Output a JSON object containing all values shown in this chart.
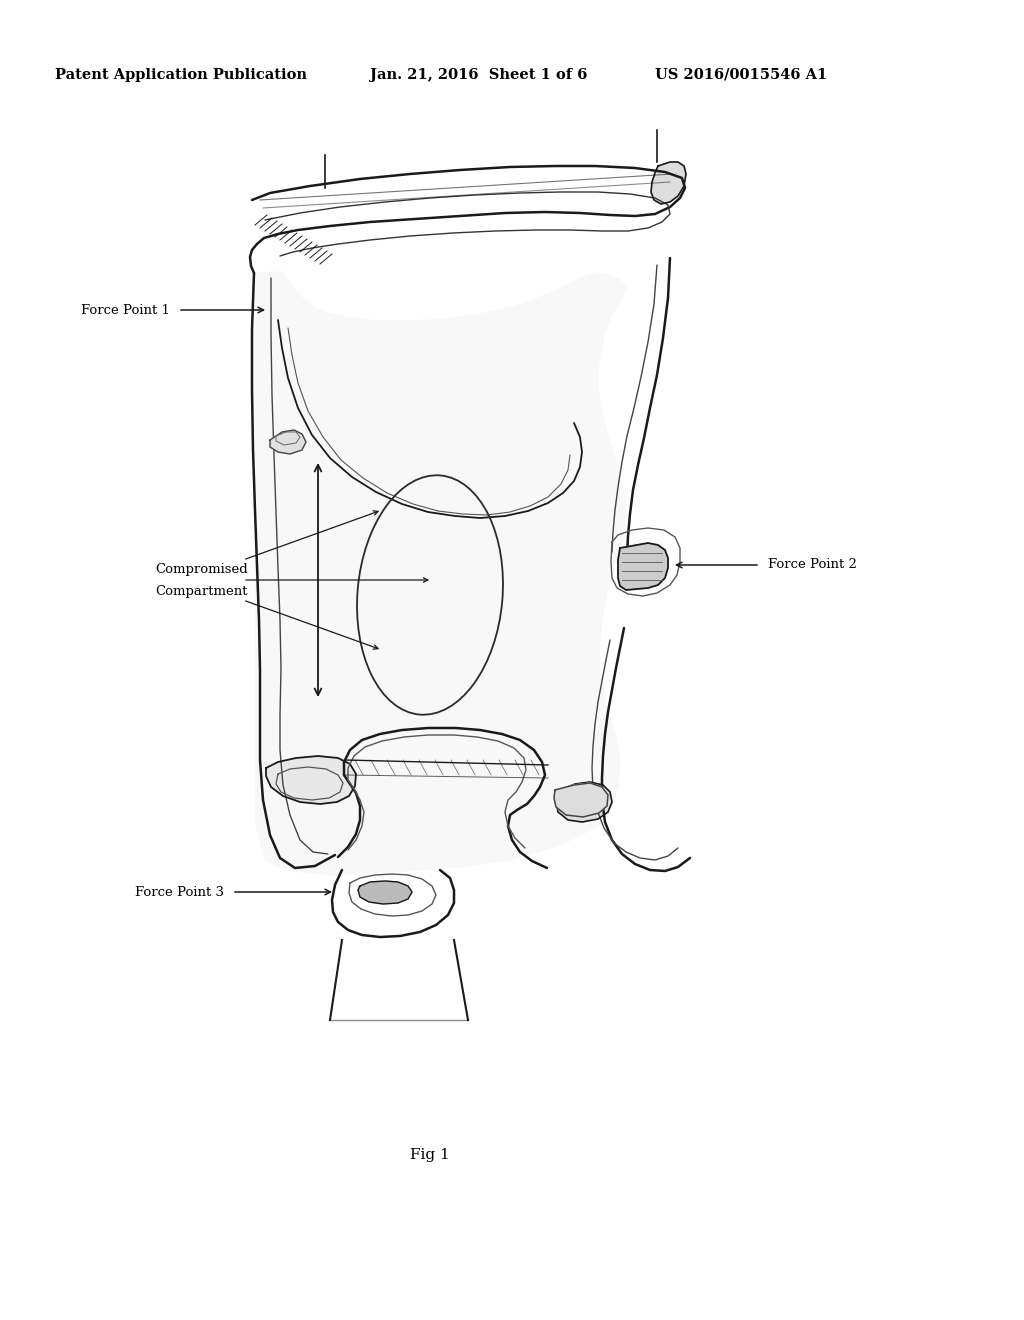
{
  "title_left": "Patent Application Publication",
  "title_center": "Jan. 21, 2016  Sheet 1 of 6",
  "title_right": "US 2016/0015546 A1",
  "fig_label": "Fig 1",
  "labels": {
    "force_point_1": "Force Point 1",
    "force_point_2": "Force Point 2",
    "force_point_3": "Force Point 3",
    "compromised_line1": "Compromised",
    "compromised_line2": "Compartment"
  },
  "background_color": "#ffffff",
  "line_color": "#1a1a1a",
  "text_color": "#000000",
  "header_fontsize": 10.5,
  "label_fontsize": 9.5,
  "fig_label_fontsize": 11
}
